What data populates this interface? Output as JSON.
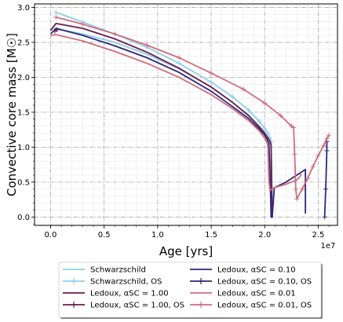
{
  "chart_data": {
    "type": "line",
    "xlabel": "Age [yrs]",
    "ylabel": "Convective core mass [M☉]",
    "x_offset_label": "1e7",
    "xlim": [
      -0.15,
      2.68
    ],
    "ylim": [
      -0.12,
      3.05
    ],
    "x_ticks": [
      0.0,
      0.5,
      1.0,
      1.5,
      2.0,
      2.5
    ],
    "x_tick_labels": [
      "0.0",
      "0.5",
      "1.0",
      "1.5",
      "2.0",
      "2.5"
    ],
    "y_ticks": [
      0.0,
      0.5,
      1.0,
      1.5,
      2.0,
      2.5,
      3.0
    ],
    "y_tick_labels": [
      "0.0",
      "0.5",
      "1.0",
      "1.5",
      "2.0",
      "2.5",
      "3.0"
    ],
    "grid": true,
    "legend_position": "below plot, two columns",
    "legend_columns": [
      [
        "Schwarzschild",
        "Schwarzschild, OS",
        "Ledoux, αSC = 1.00",
        "Ledoux, αSC = 1.00, OS"
      ],
      [
        "Ledoux, αSC = 0.10",
        "Ledoux, αSC = 0.10, OS",
        "Ledoux, αSC = 0.01",
        "Ledoux, αSC = 0.01, OS"
      ]
    ],
    "series": [
      {
        "name": "Schwarzschild",
        "color": "#8ecfe8",
        "marker": "none",
        "x": [
          0.03,
          0.3,
          0.6,
          0.9,
          1.2,
          1.5,
          1.7,
          1.85,
          1.95,
          2.0,
          2.03,
          2.05,
          2.06,
          2.065,
          2.07
        ],
        "y": [
          2.7,
          2.62,
          2.5,
          2.33,
          2.12,
          1.86,
          1.64,
          1.46,
          1.3,
          1.21,
          1.14,
          1.09,
          1.04,
          0.5,
          0.0
        ]
      },
      {
        "name": "Schwarzschild, OS",
        "color": "#8ecfe8",
        "marker": "plus",
        "x": [
          0.05,
          0.3,
          0.6,
          0.9,
          1.2,
          1.5,
          1.7,
          1.85,
          1.95,
          2.0,
          2.03,
          2.05,
          2.06,
          2.065,
          2.07
        ],
        "y": [
          2.93,
          2.79,
          2.62,
          2.43,
          2.2,
          1.93,
          1.72,
          1.53,
          1.37,
          1.27,
          1.2,
          1.13,
          1.08,
          0.5,
          0.0
        ]
      },
      {
        "name": "Ledoux, αSC = 1.00",
        "color": "#6b1e4e",
        "marker": "none",
        "x": [
          0.0,
          0.05,
          0.3,
          0.6,
          0.9,
          1.2,
          1.5,
          1.7,
          1.85,
          1.95,
          2.0,
          2.03,
          2.05,
          2.06,
          2.07
        ],
        "y": [
          2.67,
          2.77,
          2.7,
          2.55,
          2.36,
          2.13,
          1.86,
          1.64,
          1.45,
          1.29,
          1.2,
          1.13,
          1.08,
          1.03,
          0.0
        ]
      },
      {
        "name": "Ledoux, αSC = 1.00, OS",
        "color": "#6b1e4e",
        "marker": "plus",
        "x": [
          0.04,
          0.06
        ],
        "y": [
          2.66,
          2.68
        ]
      },
      {
        "name": "Ledoux, αSC = 0.10",
        "color": "#2d2a7a",
        "marker": "none",
        "x": [
          0.0,
          0.05,
          0.3,
          0.6,
          0.9,
          1.2,
          1.5,
          1.7,
          1.85,
          1.95,
          2.0,
          2.02,
          2.04,
          2.05,
          2.06,
          2.07,
          2.09,
          2.2,
          2.3,
          2.38,
          2.38
        ],
        "y": [
          2.62,
          2.7,
          2.6,
          2.45,
          2.28,
          2.07,
          1.8,
          1.58,
          1.41,
          1.26,
          1.17,
          1.12,
          1.05,
          0.6,
          0.0,
          0.0,
          0.42,
          0.5,
          0.6,
          0.68,
          0.05
        ]
      },
      {
        "name": "Ledoux, αSC = 0.10, OS",
        "color": "#2d2a7a",
        "marker": "plus",
        "x": [
          2.56,
          2.57,
          2.58,
          2.58
        ],
        "y": [
          0.0,
          0.4,
          0.95,
          1.08
        ]
      },
      {
        "name": "Ledoux, αSC = 0.01",
        "color": "#cf6d7f",
        "marker": "none",
        "x": [
          0.0,
          0.05,
          0.3,
          0.6,
          0.9,
          1.2,
          1.5,
          1.7,
          1.85,
          1.95,
          2.0,
          2.02,
          2.03,
          2.04,
          2.05,
          2.09,
          2.2,
          2.3,
          2.33,
          2.34
        ],
        "y": [
          2.6,
          2.61,
          2.52,
          2.37,
          2.2,
          2.0,
          1.75,
          1.55,
          1.38,
          1.23,
          1.13,
          1.07,
          1.01,
          0.5,
          0.38,
          0.42,
          0.47,
          0.53,
          0.58,
          0.62
        ]
      },
      {
        "name": "Ledoux, αSC = 0.01, OS",
        "color": "#cf6d7f",
        "marker": "plus",
        "x": [
          0.05,
          0.3,
          0.6,
          0.9,
          1.2,
          1.5,
          1.8,
          2.0,
          2.15,
          2.25,
          2.27,
          2.28,
          2.29,
          2.3,
          2.35,
          2.4,
          2.45,
          2.5,
          2.55,
          2.58,
          2.6
        ],
        "y": [
          2.86,
          2.76,
          2.62,
          2.46,
          2.28,
          2.06,
          1.83,
          1.63,
          1.45,
          1.3,
          1.28,
          0.9,
          0.4,
          0.26,
          0.4,
          0.55,
          0.72,
          0.88,
          1.02,
          1.12,
          1.17
        ]
      }
    ]
  }
}
